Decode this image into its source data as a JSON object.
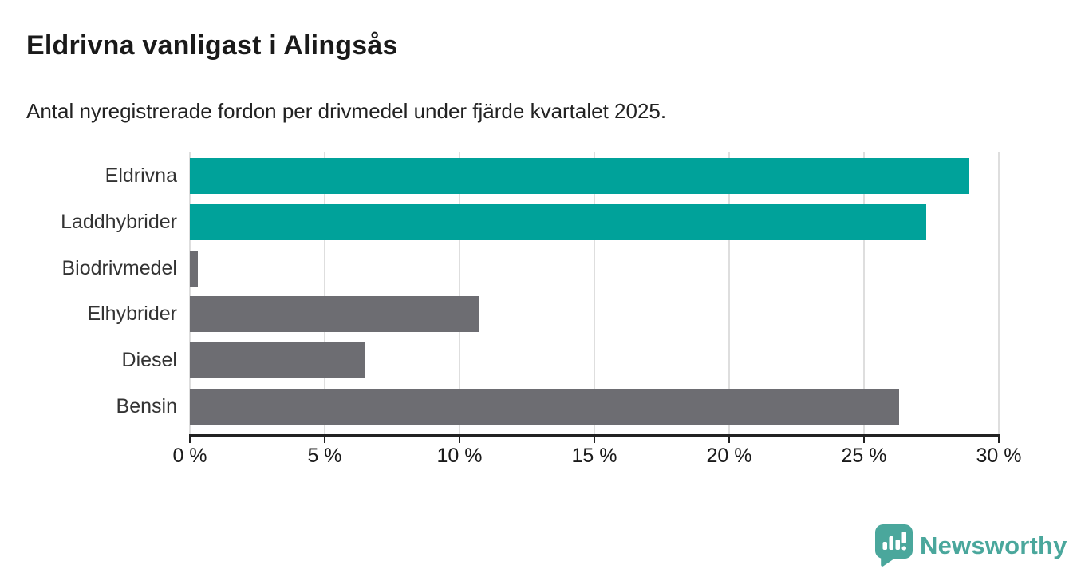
{
  "header": {
    "title": "Eldrivna vanligast i Alingsås",
    "subtitle": "Antal nyregistrerade fordon per drivmedel under fjärde kvartalet 2025."
  },
  "chart_data": {
    "type": "bar",
    "orientation": "horizontal",
    "title": "Eldrivna vanligast i Alingsås",
    "subtitle": "Antal nyregistrerade fordon per drivmedel under fjärde kvartalet 2025.",
    "categories": [
      "Eldrivna",
      "Laddhybrider",
      "Biodrivmedel",
      "Elhybrider",
      "Diesel",
      "Bensin"
    ],
    "values": [
      28.9,
      27.3,
      0.3,
      10.7,
      6.5,
      26.3
    ],
    "unit": "%",
    "xlim": [
      0,
      30
    ],
    "x_tick_values": [
      0,
      5,
      10,
      15,
      20,
      25,
      30
    ],
    "x_tick_labels": [
      "0 %",
      "5 %",
      "10 %",
      "15 %",
      "20 %",
      "25 %",
      "30 %"
    ],
    "grid": "vertical",
    "legend": "none",
    "bar_colors": [
      "#00a29a",
      "#00a29a",
      "#6d6d72",
      "#6d6d72",
      "#6d6d72",
      "#6d6d72"
    ],
    "accent_color": "#00a29a",
    "neutral_color": "#6d6d72",
    "gridline_color": "#dedede",
    "axis_color": "#222222"
  },
  "branding": {
    "name": "Newsworthy",
    "color": "#4aa79c",
    "icon": "newsworthy-speech-bubble-chart-icon"
  }
}
